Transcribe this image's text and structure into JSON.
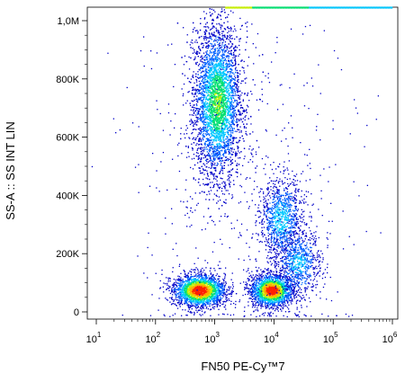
{
  "chart_data": {
    "type": "scatter",
    "subtype": "flow-cytometry-density-dot-plot",
    "title": "",
    "xlabel": "FN50 PE-Cy™7",
    "ylabel": "SS-A :: SS INT LIN",
    "x_scale": "log",
    "xlim": [
      10,
      1000000
    ],
    "ylim": [
      0,
      1050000
    ],
    "y_scale": "linear",
    "grid": false,
    "legend": "none",
    "x_ticks": [
      {
        "base": "10",
        "exp": "1",
        "value": 10
      },
      {
        "base": "10",
        "exp": "2",
        "value": 100
      },
      {
        "base": "10",
        "exp": "3",
        "value": 1000
      },
      {
        "base": "10",
        "exp": "4",
        "value": 10000
      },
      {
        "base": "10",
        "exp": "5",
        "value": 100000
      },
      {
        "base": "10",
        "exp": "6",
        "value": 1000000
      }
    ],
    "y_ticks": [
      {
        "label": "0",
        "value": 0
      },
      {
        "label": "200K",
        "value": 200000
      },
      {
        "label": "400K",
        "value": 400000
      },
      {
        "label": "600K",
        "value": 600000
      },
      {
        "label": "800K",
        "value": 800000
      },
      {
        "label": "1,0M",
        "value": 1000000
      }
    ],
    "color_scale": [
      "#0000c8",
      "#0060ff",
      "#00c8ff",
      "#00e070",
      "#c8f000",
      "#ffb000",
      "#ff2000"
    ],
    "populations": [
      {
        "x_center": 1100,
        "log_spread_x": 0.2,
        "y_center": 720000,
        "y_spread": 130000,
        "weight": 0.42,
        "peak_density": 0.55
      },
      {
        "x_center": 550,
        "log_spread_x": 0.22,
        "y_center": 75000,
        "y_spread": 28000,
        "weight": 0.2,
        "peak_density": 1.0
      },
      {
        "x_center": 9000,
        "log_spread_x": 0.18,
        "y_center": 75000,
        "y_spread": 28000,
        "weight": 0.17,
        "peak_density": 1.0
      },
      {
        "x_center": 13000,
        "log_spread_x": 0.18,
        "y_center": 320000,
        "y_spread": 70000,
        "weight": 0.09,
        "peak_density": 0.35
      },
      {
        "x_center": 25000,
        "log_spread_x": 0.2,
        "y_center": 170000,
        "y_spread": 60000,
        "weight": 0.07,
        "peak_density": 0.3
      },
      {
        "x_center": 3000,
        "log_spread_x": 0.9,
        "y_center": 450000,
        "y_spread": 300000,
        "weight": 0.05,
        "peak_density": 0.05
      }
    ],
    "saturation_band": {
      "x_from": 1500,
      "x_to": 1000000,
      "y": 1045000
    }
  }
}
